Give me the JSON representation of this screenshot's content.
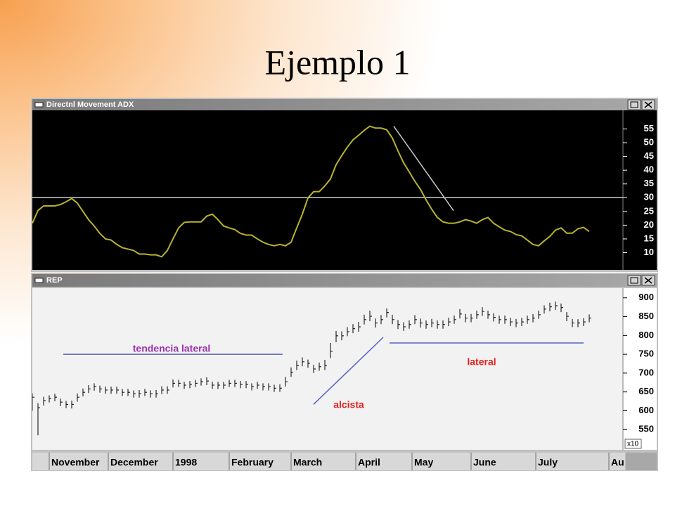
{
  "title": "Ejemplo 1",
  "chart_data": [
    {
      "type": "line",
      "title": "Directnl Movement ADX",
      "x": [
        0,
        2,
        4,
        6,
        8,
        10,
        12,
        14,
        16,
        18,
        20,
        22,
        24,
        26,
        28,
        30,
        32,
        34,
        36,
        38,
        40,
        42,
        44,
        46,
        48,
        50,
        52,
        54,
        56,
        58,
        60,
        62,
        64,
        66,
        68,
        70,
        72,
        74,
        76,
        78,
        80,
        82,
        84,
        86,
        88,
        90,
        92,
        94,
        96,
        98,
        100,
        102,
        104,
        106,
        108,
        110,
        112,
        114,
        116,
        118,
        120,
        122,
        124,
        126,
        128,
        130,
        132,
        134,
        136,
        138,
        140,
        142,
        144,
        146,
        148,
        150,
        152,
        154,
        156,
        158,
        160,
        162,
        164,
        166,
        168,
        170,
        172,
        174,
        176,
        178,
        180,
        182,
        184,
        186,
        188,
        190,
        192,
        194,
        196,
        198
      ],
      "series": [
        {
          "color": "#b9b22e",
          "values": [
            20.7,
            25.3,
            27,
            27,
            27,
            27.5,
            28.5,
            29.7,
            28,
            25,
            22,
            19.7,
            17,
            15,
            14.6,
            13,
            11.8,
            11.3,
            10.8,
            9.5,
            9.5,
            9.2,
            9.2,
            8.5,
            10.8,
            15,
            19,
            21,
            21.2,
            21.2,
            21.2,
            23.3,
            24,
            22,
            19.7,
            19,
            18.4,
            17,
            16.4,
            16.4,
            15,
            13.8,
            13,
            12.5,
            13,
            12.5,
            13.8,
            19,
            24,
            29.9,
            32.2,
            32.2,
            34.3,
            36.8,
            42,
            45.3,
            48.4,
            51,
            52.7,
            54.5,
            56,
            55.3,
            55.3,
            54.7,
            51.7,
            47,
            42.7,
            39.4,
            36,
            33,
            29.2,
            25.8,
            22.8,
            21.2,
            20.7,
            20.7,
            21.2,
            22,
            21.5,
            20.7,
            22,
            22.8,
            20.7,
            19.4,
            18.2,
            17.7,
            16.6,
            16.1,
            14.6,
            13,
            12.5,
            14.3,
            15.9,
            18.2,
            19,
            17.1,
            17.1,
            18.7,
            19.2,
            17.7
          ]
        }
      ],
      "xlim": [
        0,
        210
      ],
      "ylim": [
        4,
        61
      ],
      "yticks": [
        10,
        15,
        20,
        25,
        30,
        35,
        40,
        45,
        50,
        55
      ],
      "reference_lines": [
        {
          "y": 30,
          "color": "#c8c8c8"
        }
      ],
      "trendlines": [
        {
          "x": [
            128.5,
            149.75
          ],
          "y": [
            56,
            25.3
          ],
          "color": "#c8c8c8"
        }
      ]
    },
    {
      "type": "ohlc",
      "title": "REP",
      "x": [
        0,
        2,
        4,
        6,
        8,
        10,
        12,
        14,
        16,
        18,
        20,
        22,
        24,
        26,
        28,
        30,
        32,
        34,
        36,
        38,
        40,
        42,
        44,
        46,
        48,
        50,
        52,
        54,
        56,
        58,
        60,
        62,
        64,
        66,
        68,
        70,
        72,
        74,
        76,
        78,
        80,
        82,
        84,
        86,
        88,
        90,
        92,
        94,
        96,
        98,
        100,
        102,
        104,
        106,
        108,
        110,
        112,
        114,
        116,
        118,
        120,
        122,
        124,
        126,
        128,
        130,
        132,
        134,
        136,
        138,
        140,
        142,
        144,
        146,
        148,
        150,
        152,
        154,
        156,
        158,
        160,
        162,
        164,
        166,
        168,
        170,
        172,
        174,
        176,
        178,
        180,
        182,
        184,
        186,
        188,
        190,
        192,
        194,
        196,
        198
      ],
      "high": [
        646,
        620,
        637,
        641,
        645,
        632,
        626,
        627,
        646,
        659,
        668,
        673,
        667,
        664,
        664,
        664,
        658,
        658,
        654,
        655,
        658,
        654,
        655,
        665,
        665,
        683,
        682,
        677,
        679,
        682,
        686,
        689,
        677,
        677,
        677,
        682,
        682,
        679,
        679,
        673,
        677,
        673,
        673,
        669,
        670,
        690,
        715,
        733,
        742,
        736,
        722,
        728,
        735,
        780,
        812,
        811,
        822,
        830,
        836,
        855,
        866,
        845,
        854,
        872,
        855,
        841,
        835,
        840,
        854,
        845,
        840,
        844,
        840,
        840,
        847,
        853,
        870,
        857,
        857,
        866,
        875,
        866,
        859,
        853,
        853,
        847,
        844,
        847,
        853,
        857,
        866,
        880,
        887,
        890,
        885,
        862,
        844,
        843,
        846,
        856
      ],
      "low": [
        600,
        535,
        614,
        622,
        625,
        612,
        607,
        606,
        624,
        638,
        647,
        653,
        648,
        645,
        645,
        645,
        639,
        639,
        635,
        635,
        639,
        635,
        635,
        644,
        645,
        662,
        663,
        658,
        660,
        663,
        667,
        668,
        658,
        658,
        658,
        663,
        663,
        660,
        660,
        654,
        658,
        654,
        654,
        650,
        650,
        664,
        690,
        708,
        718,
        714,
        700,
        706,
        708,
        740,
        782,
        787,
        798,
        806,
        810,
        829,
        838,
        821,
        830,
        848,
        830,
        817,
        812,
        818,
        830,
        821,
        818,
        822,
        818,
        818,
        825,
        831,
        845,
        835,
        835,
        844,
        852,
        844,
        837,
        831,
        831,
        825,
        822,
        825,
        831,
        835,
        844,
        858,
        864,
        868,
        862,
        838,
        822,
        822,
        825,
        835
      ],
      "close": [
        636,
        608,
        627,
        632,
        636,
        623,
        617,
        617,
        636,
        649,
        658,
        664,
        658,
        655,
        655,
        655,
        649,
        649,
        645,
        645,
        649,
        645,
        645,
        655,
        655,
        673,
        673,
        668,
        670,
        673,
        677,
        679,
        668,
        668,
        668,
        673,
        673,
        670,
        670,
        664,
        668,
        664,
        664,
        660,
        660,
        677,
        702,
        720,
        730,
        726,
        711,
        717,
        720,
        758,
        799,
        799,
        810,
        818,
        823,
        842,
        851,
        833,
        842,
        861,
        842,
        829,
        823,
        829,
        842,
        833,
        829,
        833,
        829,
        829,
        836,
        842,
        857,
        846,
        846,
        855,
        864,
        855,
        848,
        842,
        842,
        836,
        833,
        836,
        842,
        846,
        855,
        870,
        876,
        879,
        874,
        851,
        833,
        833,
        836,
        846
      ],
      "color": "#000000",
      "xlim": [
        0,
        210
      ],
      "ylim": [
        500,
        922
      ],
      "yticks": [
        550,
        600,
        650,
        700,
        750,
        800,
        850,
        900
      ],
      "y_multiplier_label": "x10",
      "xticks": [
        {
          "value": 6,
          "label": "November"
        },
        {
          "value": 27,
          "label": "December"
        },
        {
          "value": 50,
          "label": "1998"
        },
        {
          "value": 70,
          "label": "February"
        },
        {
          "value": 92,
          "label": "March"
        },
        {
          "value": 115,
          "label": "April"
        },
        {
          "value": 135,
          "label": "May"
        },
        {
          "value": 156,
          "label": "June"
        },
        {
          "value": 179,
          "label": "July"
        },
        {
          "value": 205,
          "label": "Au"
        }
      ],
      "trendlines": [
        {
          "x": [
            11,
            89
          ],
          "y": [
            750,
            750
          ],
          "color": "#5563c4"
        },
        {
          "x": [
            100,
            124.75
          ],
          "y": [
            617,
            795
          ],
          "color": "#5563c4"
        },
        {
          "x": [
            127,
            196
          ],
          "y": [
            780,
            780
          ],
          "color": "#5563c4"
        }
      ],
      "annotations": [
        {
          "text": "tendencia lateral",
          "color": "#9a2fae"
        },
        {
          "text": "alcista",
          "color": "#e0201c"
        },
        {
          "text": "lateral",
          "color": "#e0201c"
        }
      ]
    }
  ]
}
